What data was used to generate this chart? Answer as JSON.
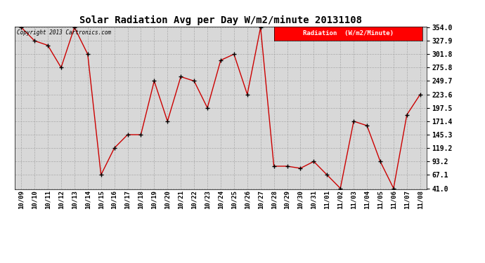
{
  "title": "Solar Radiation Avg per Day W/m2/minute 20131108",
  "copyright": "Copyright 2013 Cartronics.com",
  "legend_label": "Radiation  (W/m2/Minute)",
  "dates": [
    "10/09",
    "10/10",
    "10/11",
    "10/12",
    "10/13",
    "10/14",
    "10/15",
    "10/16",
    "10/17",
    "10/18",
    "10/19",
    "10/20",
    "10/21",
    "10/22",
    "10/23",
    "10/24",
    "10/25",
    "10/26",
    "10/27",
    "10/28",
    "10/29",
    "10/30",
    "10/31",
    "11/01",
    "11/02",
    "11/03",
    "11/04",
    "11/05",
    "11/06",
    "11/07",
    "11/08"
  ],
  "values": [
    354.0,
    327.9,
    319.0,
    275.8,
    354.0,
    301.8,
    67.1,
    119.2,
    145.3,
    145.3,
    249.7,
    171.4,
    258.0,
    249.7,
    197.5,
    290.0,
    301.8,
    223.6,
    354.0,
    84.0,
    84.0,
    80.0,
    93.2,
    67.1,
    41.0,
    171.4,
    163.0,
    93.2,
    41.0,
    184.0,
    223.6
  ],
  "ylim_min": 41.0,
  "ylim_max": 354.0,
  "yticks": [
    41.0,
    67.1,
    93.2,
    119.2,
    145.3,
    171.4,
    197.5,
    223.6,
    249.7,
    275.8,
    301.8,
    327.9,
    354.0
  ],
  "line_color": "#cc0000",
  "marker_color": "black",
  "bg_color": "#d8d8d8",
  "grid_color": "#aaaaaa",
  "title_fontsize": 10,
  "legend_bg": "red",
  "legend_text_color": "white"
}
